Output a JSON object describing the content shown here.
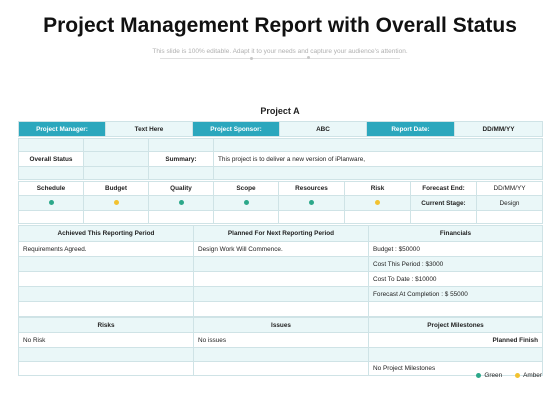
{
  "header": {
    "title": "Project Management Report with Overall Status",
    "subtitle": "This slide is 100% editable. Adapt it to your needs and capture your audience's attention."
  },
  "project_name": "Project A",
  "info_row": {
    "manager_label": "Project Manager:",
    "manager_value": "Text Here",
    "sponsor_label": "Project Sponsor:",
    "sponsor_value": "ABC",
    "date_label": "Report Date:",
    "date_value": "DD/MM/YY"
  },
  "overall": {
    "label": "Overall Status",
    "summary_label": "Summary:",
    "summary_value": "This project is to deliver a new version of  iPlanware,"
  },
  "status": {
    "headers": [
      "Schedule",
      "Budget",
      "Quality",
      "Scope",
      "Resources",
      "Risk"
    ],
    "indicators": [
      "green",
      "amber",
      "green",
      "green",
      "green",
      "amber"
    ],
    "forecast_end_label": "Forecast End:",
    "forecast_end_value": "DD/MM/YY",
    "current_stage_label": "Current Stage:",
    "current_stage_value": "Design"
  },
  "period": {
    "headers": [
      "Achieved This Reporting Period",
      "Planned For Next Reporting Period",
      "Financials"
    ],
    "achieved": "Requirements Agreed.",
    "planned": "Design Work Will Commence.",
    "financials": [
      "Budget : $50000",
      "Cost This Period : $3000",
      "Cost To Date : $10000",
      "Forecast At Completion : $ 55000"
    ]
  },
  "bottom": {
    "headers": [
      "Risks",
      "Issues",
      "Project Milestones"
    ],
    "risks": "No Risk",
    "issues": "No issues",
    "planned_finish": "Planned Finish",
    "milestones": "No Project Milestones"
  },
  "legend": {
    "green_label": "Green",
    "amber_label": "Amber"
  },
  "colors": {
    "green": "#2ca88a",
    "amber": "#f2c230",
    "header_teal": "#2ba7bd",
    "light_bg": "#eaf7f8"
  }
}
